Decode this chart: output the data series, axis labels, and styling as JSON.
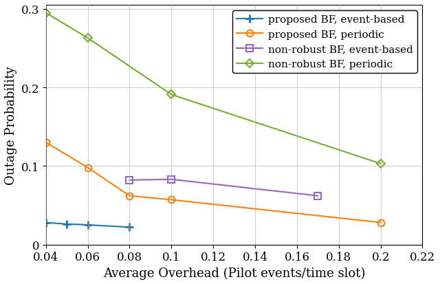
{
  "series": [
    {
      "label": "proposed BF, event-based",
      "color": "#1f77b4",
      "marker": "+",
      "markersize": 9,
      "markeredgewidth": 2,
      "linewidth": 1.5,
      "fillstyle": "full",
      "x": [
        0.04,
        0.05,
        0.06,
        0.08
      ],
      "y": [
        0.028,
        0.026,
        0.025,
        0.022
      ]
    },
    {
      "label": "proposed BF, periodic",
      "color": "#ff7f0e",
      "marker": "o",
      "markersize": 7,
      "markeredgewidth": 1.5,
      "linewidth": 1.5,
      "markerfacecolor": "none",
      "x": [
        0.04,
        0.06,
        0.08,
        0.1,
        0.2
      ],
      "y": [
        0.13,
        0.098,
        0.062,
        0.057,
        0.028
      ]
    },
    {
      "label": "non-robust BF, event-based",
      "color": "#9467bd",
      "marker": "s",
      "markersize": 7,
      "markeredgewidth": 1.5,
      "linewidth": 1.5,
      "markerfacecolor": "none",
      "x": [
        0.08,
        0.1,
        0.17
      ],
      "y": [
        0.082,
        0.083,
        0.062
      ]
    },
    {
      "label": "non-robust BF, periodic",
      "color": "#77ac30",
      "marker": "D",
      "markersize": 6,
      "markeredgewidth": 1.5,
      "linewidth": 1.5,
      "markerfacecolor": "none",
      "x": [
        0.04,
        0.06,
        0.1,
        0.2
      ],
      "y": [
        0.295,
        0.263,
        0.191,
        0.103
      ]
    }
  ],
  "xlabel": "Average Overhead (Pilot events/time slot)",
  "ylabel": "Outage Probability",
  "xlim": [
    0.04,
    0.22
  ],
  "ylim": [
    0.0,
    0.305
  ],
  "xticks": [
    0.04,
    0.06,
    0.08,
    0.1,
    0.12,
    0.14,
    0.16,
    0.18,
    0.2,
    0.22
  ],
  "xtick_labels": [
    "0.04",
    "0.06",
    "0.08",
    "0.1",
    "0.12",
    "0.14",
    "0.16",
    "0.18",
    "0.2",
    "0.22"
  ],
  "yticks": [
    0.0,
    0.1,
    0.2,
    0.3
  ],
  "ytick_labels": [
    "0",
    "0.1",
    "0.2",
    "0.3"
  ],
  "grid": true,
  "legend_loc": "upper right",
  "label_fontsize": 13,
  "tick_fontsize": 12,
  "legend_fontsize": 11
}
